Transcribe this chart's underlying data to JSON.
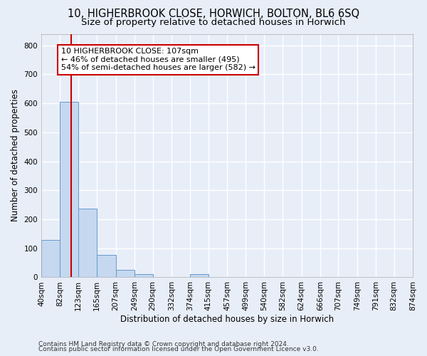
{
  "title1": "10, HIGHERBROOK CLOSE, HORWICH, BOLTON, BL6 6SQ",
  "title2": "Size of property relative to detached houses in Horwich",
  "xlabel": "Distribution of detached houses by size in Horwich",
  "ylabel": "Number of detached properties",
  "bin_edges": [
    40,
    82,
    123,
    165,
    207,
    249,
    290,
    332,
    374,
    415,
    457,
    499,
    540,
    582,
    624,
    666,
    707,
    749,
    791,
    832,
    874
  ],
  "bar_heights": [
    130,
    605,
    237,
    78,
    25,
    10,
    0,
    0,
    10,
    0,
    0,
    0,
    0,
    0,
    0,
    0,
    0,
    0,
    0,
    0
  ],
  "bar_color": "#c5d8f0",
  "bar_edge_color": "#6699cc",
  "property_size": 107,
  "red_line_color": "#cc0000",
  "annotation_line1": "10 HIGHERBROOK CLOSE: 107sqm",
  "annotation_line2": "← 46% of detached houses are smaller (495)",
  "annotation_line3": "54% of semi-detached houses are larger (582) →",
  "annotation_box_color": "#ffffff",
  "annotation_box_edge_color": "#cc0000",
  "ylim": [
    0,
    840
  ],
  "yticks": [
    0,
    100,
    200,
    300,
    400,
    500,
    600,
    700,
    800
  ],
  "footer1": "Contains HM Land Registry data © Crown copyright and database right 2024.",
  "footer2": "Contains public sector information licensed under the Open Government Licence v3.0.",
  "background_color": "#e8eef8",
  "grid_color": "#ffffff",
  "title1_fontsize": 10.5,
  "title2_fontsize": 9.5,
  "tick_label_fontsize": 7.5,
  "ylabel_fontsize": 8.5,
  "xlabel_fontsize": 8.5,
  "annotation_fontsize": 8,
  "footer_fontsize": 6.5
}
